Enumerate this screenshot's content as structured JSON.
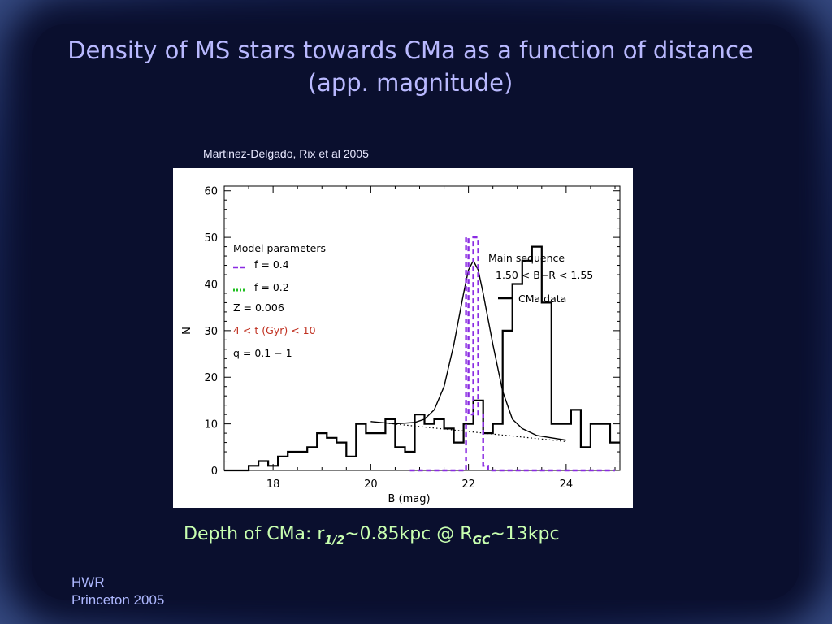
{
  "slide": {
    "title": "Density of MS stars towards CMa as a function of distance (app. magnitude)",
    "credit": "Martinez-Delgado, Rix et al 2005",
    "caption": {
      "prefix": "Depth of CMa: r",
      "sub1": "1/2",
      "mid": "~0.85kpc @ R",
      "sub2": "GC",
      "suffix": "~13kpc"
    },
    "footer_line1": "HWR",
    "footer_line2": "Princeton  2005"
  },
  "chart_data": {
    "type": "line",
    "xlabel": "B (mag)",
    "ylabel": "N",
    "xlim": [
      17,
      25.1
    ],
    "ylim": [
      0,
      61
    ],
    "xticks": [
      18,
      20,
      22,
      24
    ],
    "yticks": [
      0,
      10,
      20,
      30,
      40,
      50,
      60
    ],
    "colors": {
      "data": "#000000",
      "f04": "#8a2be2",
      "f02": "#1fc01f",
      "age": "#c03020"
    },
    "series": [
      {
        "name": "CMa data",
        "style": "step",
        "x": [
          17.0,
          17.3,
          17.5,
          17.7,
          17.9,
          18.1,
          18.3,
          18.5,
          18.7,
          18.9,
          19.1,
          19.3,
          19.5,
          19.7,
          19.9,
          20.1,
          20.3,
          20.5,
          20.7,
          20.9,
          21.1,
          21.3,
          21.5,
          21.7,
          21.9,
          22.1,
          22.3,
          22.5,
          22.7,
          22.9,
          23.1,
          23.3,
          23.5,
          23.7,
          23.9,
          24.1,
          24.3,
          24.5,
          24.7,
          24.9
        ],
        "values": [
          0,
          0,
          1,
          2,
          1,
          3,
          4,
          4,
          5,
          8,
          7,
          6,
          3,
          10,
          8,
          8,
          11,
          5,
          4,
          12,
          10,
          11,
          9,
          6,
          10,
          15,
          8,
          10,
          30,
          40,
          45,
          48,
          36,
          10,
          10,
          13,
          5,
          10,
          10,
          6
        ]
      },
      {
        "name": "",
        "style": "smooth",
        "x": [
          20.0,
          20.5,
          20.9,
          21.1,
          21.3,
          21.5,
          21.7,
          21.9,
          22.0,
          22.1,
          22.2,
          22.3,
          22.5,
          22.7,
          22.9,
          23.1,
          23.4,
          23.7,
          24.0
        ],
        "values": [
          10.5,
          10,
          10.3,
          11,
          13,
          18,
          27,
          38,
          43,
          45,
          43,
          38,
          27,
          17,
          11,
          9,
          7.5,
          7,
          6.5
        ]
      },
      {
        "name": "",
        "style": "dotted",
        "x": [
          20.0,
          24.0
        ],
        "values": [
          10.5,
          6.2
        ]
      },
      {
        "name": "f = 0.4",
        "style": "dashed",
        "x": [
          20.8,
          21.95,
          21.95,
          22.0,
          22.0,
          22.1,
          22.1,
          22.2,
          22.2,
          22.3,
          22.3,
          22.4,
          22.4,
          25.0
        ],
        "values": [
          0,
          0,
          50,
          50,
          12,
          12,
          50,
          50,
          12,
          12,
          1,
          1,
          0,
          0
        ]
      }
    ],
    "legend_left": {
      "header": "Model parameters",
      "entries": [
        "f = 0.4",
        "f = 0.2",
        "Z = 0.006",
        "4 < t (Gyr) < 10",
        "q = 0.1 − 1"
      ]
    },
    "legend_right": {
      "header": "Main sequence",
      "range": "1.50 < B−R <  1.55",
      "entry": "CMa data"
    }
  }
}
